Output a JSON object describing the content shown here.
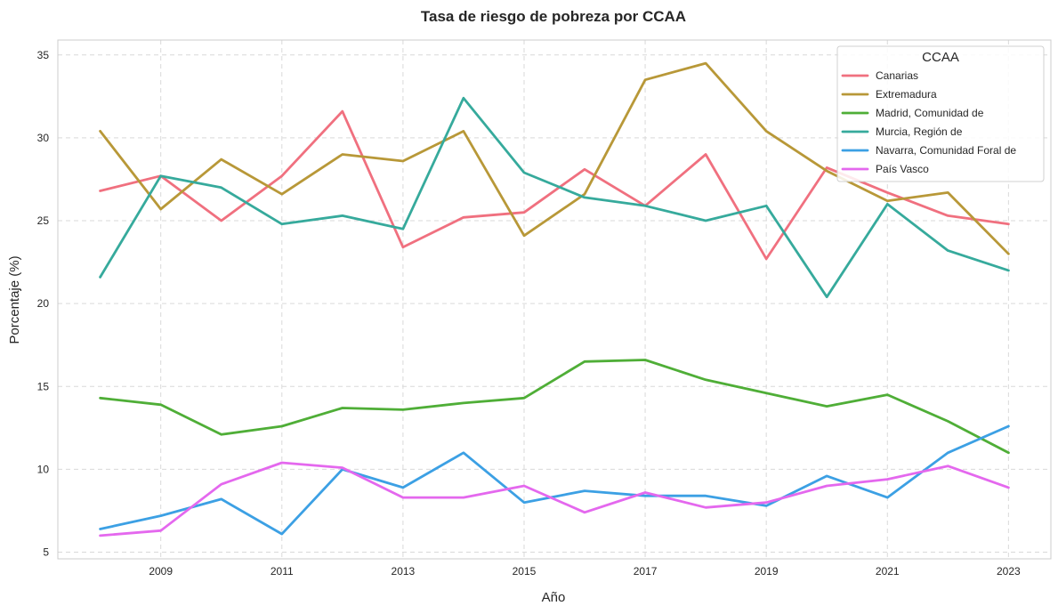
{
  "chart_data": {
    "type": "line",
    "title": "Tasa de riesgo de pobreza por CCAA",
    "xlabel": "Año",
    "ylabel": "Porcentaje (%)",
    "x": [
      2008,
      2009,
      2010,
      2011,
      2012,
      2013,
      2014,
      2015,
      2016,
      2017,
      2018,
      2019,
      2020,
      2021,
      2022,
      2023
    ],
    "xlim": [
      2007.3,
      2023.7
    ],
    "ylim": [
      4.6,
      35.9
    ],
    "xticks": [
      2009,
      2011,
      2013,
      2015,
      2017,
      2019,
      2021,
      2023
    ],
    "xtick_labels": [
      "2009",
      "2011",
      "2013",
      "2015",
      "2017",
      "2019",
      "2021",
      "2023"
    ],
    "yticks": [
      5,
      10,
      15,
      20,
      25,
      30,
      35
    ],
    "ytick_labels": [
      "5",
      "10",
      "15",
      "20",
      "25",
      "30",
      "35"
    ],
    "grid": true,
    "legend": {
      "title": "CCAA",
      "placement": "top-right"
    },
    "series": [
      {
        "name": "Canarias",
        "color": "#f0707f",
        "values": [
          26.8,
          27.7,
          25.0,
          27.7,
          31.6,
          23.4,
          25.2,
          25.5,
          28.1,
          25.9,
          29.0,
          22.7,
          28.2,
          26.7,
          25.3,
          24.8
        ]
      },
      {
        "name": "Extremadura",
        "color": "#b89838",
        "values": [
          30.4,
          25.7,
          28.7,
          26.6,
          29.0,
          28.6,
          30.4,
          24.1,
          26.6,
          33.5,
          34.5,
          30.4,
          28.0,
          26.2,
          26.7,
          23.0
        ]
      },
      {
        "name": "Madrid, Comunidad de",
        "color": "#4fae37",
        "values": [
          14.3,
          13.9,
          12.1,
          12.6,
          13.7,
          13.6,
          14.0,
          14.3,
          16.5,
          16.6,
          15.4,
          14.6,
          13.8,
          14.5,
          12.9,
          11.0
        ]
      },
      {
        "name": "Murcia, Región de",
        "color": "#36aa9c",
        "values": [
          21.6,
          27.7,
          27.0,
          24.8,
          25.3,
          24.5,
          32.4,
          27.9,
          26.4,
          25.9,
          25.0,
          25.9,
          20.4,
          26.0,
          23.2,
          22.0
        ]
      },
      {
        "name": "Navarra, Comunidad Foral de",
        "color": "#3ca0e4",
        "values": [
          6.4,
          7.2,
          8.2,
          6.1,
          10.0,
          8.9,
          11.0,
          8.0,
          8.7,
          8.4,
          8.4,
          7.8,
          9.6,
          8.3,
          11.0,
          12.6
        ]
      },
      {
        "name": "País Vasco",
        "color": "#e468ee",
        "values": [
          6.0,
          6.3,
          9.1,
          10.4,
          10.1,
          8.3,
          8.3,
          9.0,
          7.4,
          8.6,
          7.7,
          8.0,
          9.0,
          9.4,
          10.2,
          8.9
        ]
      }
    ]
  }
}
